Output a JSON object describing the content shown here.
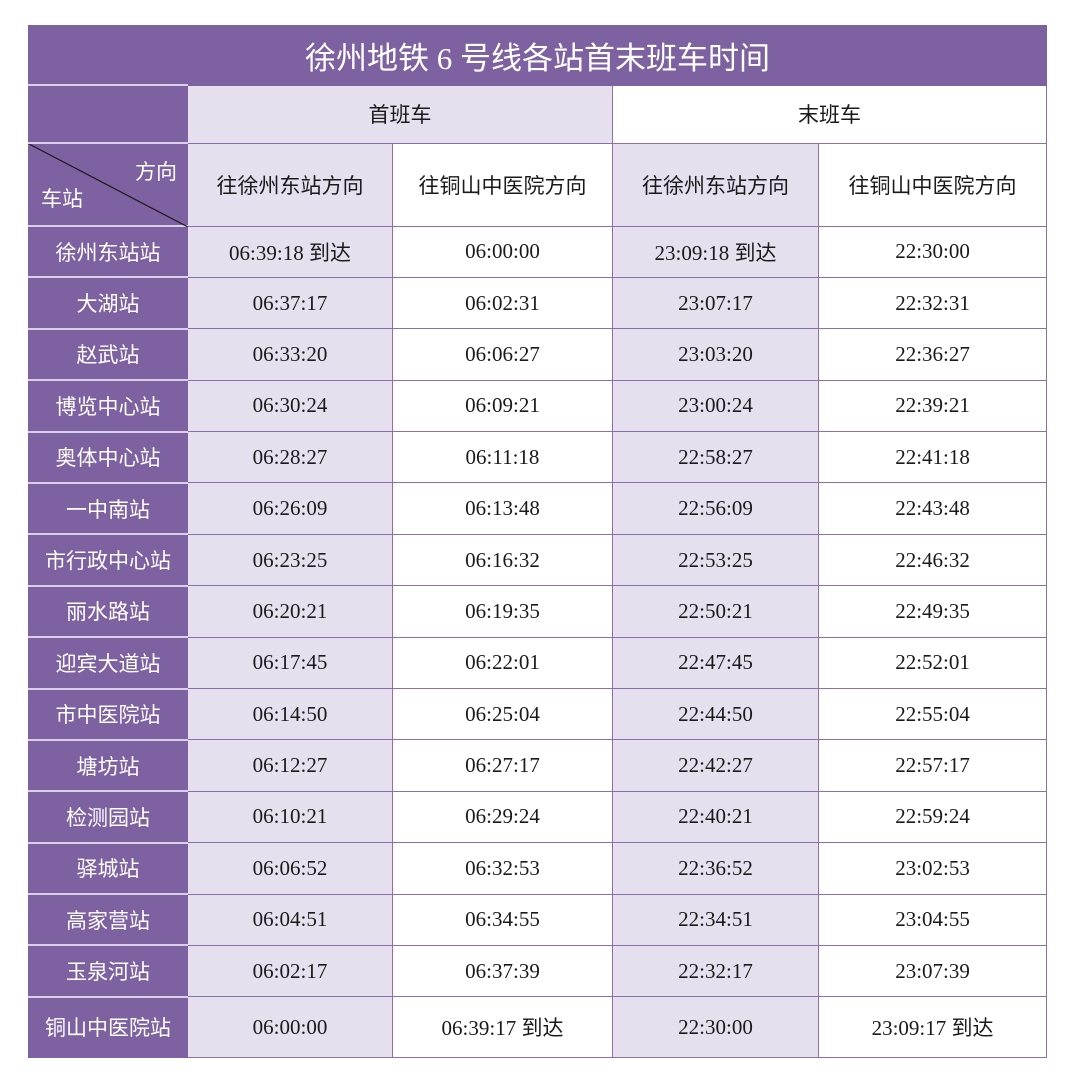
{
  "title": "徐州地铁 6 号线各站首末班车时间",
  "headers": {
    "first_train": "首班车",
    "last_train": "末班车",
    "direction": "方向",
    "station": "车站",
    "dir_xuzhoudong": "往徐州东站方向",
    "dir_tongshan": "往铜山中医院方向"
  },
  "colors": {
    "purple": "#7e61a0",
    "lavender": "#e6dfed",
    "grid": "#8a70ac"
  },
  "rows": [
    {
      "station": "徐州东站站",
      "first_east": "06:39:18 到达",
      "first_tong": "06:00:00",
      "last_east": "23:09:18 到达",
      "last_tong": "22:30:00"
    },
    {
      "station": "大湖站",
      "first_east": "06:37:17",
      "first_tong": "06:02:31",
      "last_east": "23:07:17",
      "last_tong": "22:32:31"
    },
    {
      "station": "赵武站",
      "first_east": "06:33:20",
      "first_tong": "06:06:27",
      "last_east": "23:03:20",
      "last_tong": "22:36:27"
    },
    {
      "station": "博览中心站",
      "first_east": "06:30:24",
      "first_tong": "06:09:21",
      "last_east": "23:00:24",
      "last_tong": "22:39:21"
    },
    {
      "station": "奥体中心站",
      "first_east": "06:28:27",
      "first_tong": "06:11:18",
      "last_east": "22:58:27",
      "last_tong": "22:41:18"
    },
    {
      "station": "一中南站",
      "first_east": "06:26:09",
      "first_tong": "06:13:48",
      "last_east": "22:56:09",
      "last_tong": "22:43:48"
    },
    {
      "station": "市行政中心站",
      "first_east": "06:23:25",
      "first_tong": "06:16:32",
      "last_east": "22:53:25",
      "last_tong": "22:46:32"
    },
    {
      "station": "丽水路站",
      "first_east": "06:20:21",
      "first_tong": "06:19:35",
      "last_east": "22:50:21",
      "last_tong": "22:49:35"
    },
    {
      "station": "迎宾大道站",
      "first_east": "06:17:45",
      "first_tong": "06:22:01",
      "last_east": "22:47:45",
      "last_tong": "22:52:01"
    },
    {
      "station": "市中医院站",
      "first_east": "06:14:50",
      "first_tong": "06:25:04",
      "last_east": "22:44:50",
      "last_tong": "22:55:04"
    },
    {
      "station": "塘坊站",
      "first_east": "06:12:27",
      "first_tong": "06:27:17",
      "last_east": "22:42:27",
      "last_tong": "22:57:17"
    },
    {
      "station": "检测园站",
      "first_east": "06:10:21",
      "first_tong": "06:29:24",
      "last_east": "22:40:21",
      "last_tong": "22:59:24"
    },
    {
      "station": "驿城站",
      "first_east": "06:06:52",
      "first_tong": "06:32:53",
      "last_east": "22:36:52",
      "last_tong": "23:02:53"
    },
    {
      "station": "高家营站",
      "first_east": "06:04:51",
      "first_tong": "06:34:55",
      "last_east": "22:34:51",
      "last_tong": "23:04:55"
    },
    {
      "station": "玉泉河站",
      "first_east": "06:02:17",
      "first_tong": "06:37:39",
      "last_east": "22:32:17",
      "last_tong": "23:07:39"
    },
    {
      "station": "铜山中医院站",
      "first_east": "06:00:00",
      "first_tong": "06:39:17 到达",
      "last_east": "22:30:00",
      "last_tong": "23:09:17 到达"
    }
  ]
}
